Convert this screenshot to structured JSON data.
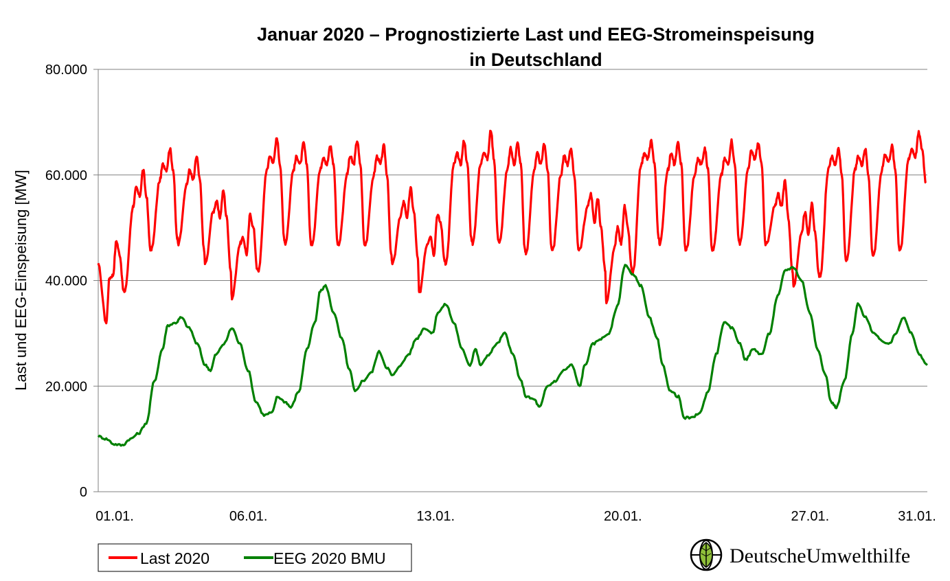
{
  "chart_data": {
    "type": "line",
    "title": [
      "Januar 2020 – Prognostizierte Last und EEG-Stromeinspeisung",
      "in Deutschland"
    ],
    "ylabel": "Last und EEG-Einspeisung [MW]",
    "xlabel": "",
    "ylim": [
      0,
      80000
    ],
    "yticks": [
      0,
      20000,
      40000,
      60000,
      80000
    ],
    "ytick_labels": [
      "0",
      "20.000",
      "40.000",
      "60.000",
      "80.000"
    ],
    "xlim": [
      1,
      32
    ],
    "xticks": [
      1,
      6,
      13,
      20,
      27,
      31
    ],
    "xtick_labels": [
      "01.01.",
      "06.01.",
      "13.01.",
      "20.01.",
      "27.01.",
      "31.01."
    ],
    "grid": "horizontal",
    "legend": "bottom-left",
    "x_unit": "day of January 2020",
    "series": [
      {
        "name": "Last 2020",
        "color": "#ff0000",
        "daily": [
          [
            1,
            43000,
            32000,
            40500,
            41000,
            47500,
            45000,
            38000
          ],
          [
            2,
            38000,
            54000,
            57500,
            56000,
            61000,
            56000,
            46000
          ],
          [
            3,
            46000,
            59000,
            62000,
            61000,
            65000,
            61000,
            48000
          ],
          [
            4,
            47000,
            58000,
            61000,
            59000,
            63500,
            59000,
            46000
          ],
          [
            5,
            43000,
            53000,
            55000,
            52000,
            57000,
            52000,
            42000
          ],
          [
            6,
            36500,
            47000,
            48000,
            45000,
            52500,
            50000,
            42000
          ],
          [
            7,
            42000,
            61000,
            63500,
            62500,
            67000,
            62000,
            48000
          ],
          [
            8,
            47000,
            61000,
            63500,
            62000,
            66000,
            62000,
            47000
          ],
          [
            9,
            47000,
            61000,
            63500,
            62000,
            65500,
            62000,
            47000
          ],
          [
            10,
            47000,
            60000,
            63500,
            62000,
            66500,
            62000,
            47000
          ],
          [
            11,
            47000,
            60000,
            63500,
            62000,
            65500,
            60000,
            45000
          ],
          [
            12,
            43000,
            52000,
            55000,
            52000,
            57500,
            53000,
            44000
          ],
          [
            13,
            37500,
            47000,
            48500,
            45000,
            52500,
            51000,
            44000
          ],
          [
            14,
            43000,
            62000,
            64000,
            62000,
            66500,
            62000,
            48000
          ],
          [
            15,
            47000,
            62000,
            64500,
            63000,
            68500,
            63000,
            48000
          ],
          [
            16,
            47000,
            61000,
            65000,
            62000,
            66000,
            62000,
            46000
          ],
          [
            17,
            45000,
            61000,
            64000,
            62000,
            66000,
            61000,
            46000
          ],
          [
            18,
            46000,
            60000,
            63500,
            62000,
            65000,
            60000,
            46000
          ],
          [
            19,
            46000,
            54000,
            56500,
            51000,
            55500,
            50000,
            42000
          ],
          [
            20,
            35500,
            46000,
            50000,
            47000,
            54000,
            50000,
            42000
          ],
          [
            21,
            41500,
            62000,
            64000,
            63000,
            66500,
            62000,
            48000
          ],
          [
            22,
            47000,
            61000,
            64000,
            62000,
            66000,
            62000,
            46000
          ],
          [
            23,
            46000,
            60000,
            63000,
            62000,
            65000,
            61000,
            46000
          ],
          [
            24,
            46000,
            60000,
            63000,
            62000,
            66500,
            62000,
            47500
          ],
          [
            25,
            47000,
            61000,
            64500,
            63000,
            66000,
            62000,
            47000
          ],
          [
            26,
            47000,
            54000,
            56500,
            54000,
            59000,
            52000,
            42000
          ],
          [
            27,
            39000,
            49000,
            53000,
            49000,
            54500,
            49000,
            41000
          ],
          [
            28,
            41000,
            61000,
            63500,
            62000,
            65000,
            60000,
            44000
          ],
          [
            29,
            44000,
            61000,
            63500,
            62000,
            65000,
            60000,
            45000
          ],
          [
            30,
            45000,
            61000,
            64000,
            62500,
            65500,
            61000,
            46000
          ],
          [
            31,
            46000,
            63000,
            65000,
            63500,
            68000,
            65000,
            58500
          ]
        ]
      },
      {
        "name": "EEG 2020 BMU",
        "color": "#008000",
        "points": [
          [
            1,
            10500
          ],
          [
            1.3,
            10000
          ],
          [
            1.6,
            9000
          ],
          [
            1.9,
            8800
          ],
          [
            2.2,
            10000
          ],
          [
            2.5,
            11000
          ],
          [
            2.8,
            13000
          ],
          [
            3.1,
            21000
          ],
          [
            3.4,
            27000
          ],
          [
            3.6,
            31500
          ],
          [
            3.9,
            32000
          ],
          [
            4.1,
            33000
          ],
          [
            4.4,
            31000
          ],
          [
            4.7,
            28000
          ],
          [
            5.0,
            24000
          ],
          [
            5.2,
            23000
          ],
          [
            5.4,
            26000
          ],
          [
            5.7,
            28000
          ],
          [
            6.0,
            31000
          ],
          [
            6.3,
            28000
          ],
          [
            6.6,
            23000
          ],
          [
            6.9,
            17000
          ],
          [
            7.2,
            14500
          ],
          [
            7.5,
            15000
          ],
          [
            7.7,
            18000
          ],
          [
            8.0,
            17000
          ],
          [
            8.2,
            16000
          ],
          [
            8.5,
            19000
          ],
          [
            8.8,
            27000
          ],
          [
            9.1,
            32000
          ],
          [
            9.3,
            38000
          ],
          [
            9.5,
            39000
          ],
          [
            9.8,
            34000
          ],
          [
            10.1,
            29000
          ],
          [
            10.4,
            23000
          ],
          [
            10.6,
            19000
          ],
          [
            10.9,
            21000
          ],
          [
            11.2,
            22500
          ],
          [
            11.5,
            26500
          ],
          [
            11.8,
            23500
          ],
          [
            12.0,
            22000
          ],
          [
            12.3,
            24000
          ],
          [
            12.6,
            26000
          ],
          [
            12.9,
            29000
          ],
          [
            13.2,
            31000
          ],
          [
            13.5,
            30000
          ],
          [
            13.7,
            34000
          ],
          [
            14.0,
            35500
          ],
          [
            14.3,
            32000
          ],
          [
            14.6,
            27000
          ],
          [
            14.9,
            24000
          ],
          [
            15.1,
            27000
          ],
          [
            15.3,
            24000
          ],
          [
            15.6,
            26000
          ],
          [
            15.9,
            28000
          ],
          [
            16.2,
            30000
          ],
          [
            16.5,
            26000
          ],
          [
            16.8,
            21000
          ],
          [
            17.0,
            18000
          ],
          [
            17.3,
            17500
          ],
          [
            17.5,
            16000
          ],
          [
            17.8,
            20000
          ],
          [
            18.1,
            21000
          ],
          [
            18.4,
            23000
          ],
          [
            18.7,
            24000
          ],
          [
            19.0,
            20000
          ],
          [
            19.2,
            24000
          ],
          [
            19.5,
            28000
          ],
          [
            19.8,
            29000
          ],
          [
            20.1,
            30000
          ],
          [
            20.4,
            35000
          ],
          [
            20.7,
            43000
          ],
          [
            21.0,
            41000
          ],
          [
            21.3,
            39000
          ],
          [
            21.6,
            33000
          ],
          [
            21.9,
            29000
          ],
          [
            22.1,
            24000
          ],
          [
            22.4,
            19000
          ],
          [
            22.7,
            18000
          ],
          [
            22.9,
            14000
          ],
          [
            23.2,
            14000
          ],
          [
            23.5,
            15000
          ],
          [
            23.8,
            19000
          ],
          [
            24.1,
            26000
          ],
          [
            24.4,
            32000
          ],
          [
            24.7,
            31000
          ],
          [
            25.0,
            28000
          ],
          [
            25.2,
            25000
          ],
          [
            25.5,
            27000
          ],
          [
            25.8,
            26000
          ],
          [
            26.1,
            30000
          ],
          [
            26.4,
            37000
          ],
          [
            26.7,
            42000
          ],
          [
            27.0,
            42500
          ],
          [
            27.3,
            40000
          ],
          [
            27.6,
            34000
          ],
          [
            27.9,
            27000
          ],
          [
            28.2,
            22000
          ],
          [
            28.4,
            17000
          ],
          [
            28.6,
            16000
          ],
          [
            28.9,
            21000
          ],
          [
            29.2,
            30000
          ],
          [
            29.4,
            35500
          ],
          [
            29.7,
            33000
          ],
          [
            30.0,
            30000
          ],
          [
            30.3,
            28500
          ],
          [
            30.6,
            28000
          ],
          [
            30.8,
            30000
          ],
          [
            31.1,
            33000
          ],
          [
            31.4,
            30000
          ],
          [
            31.7,
            26000
          ],
          [
            32.0,
            24000
          ]
        ]
      }
    ]
  },
  "legend_labels": [
    "Last 2020",
    "EEG 2020 BMU"
  ],
  "logo": {
    "text": "DeutscheUmwelthilfe",
    "icon": "globe-leaf-icon"
  }
}
